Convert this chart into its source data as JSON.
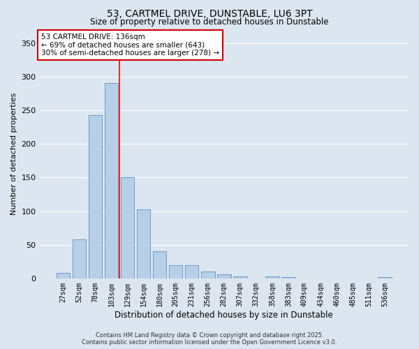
{
  "title_line1": "53, CARTMEL DRIVE, DUNSTABLE, LU6 3PT",
  "title_line2": "Size of property relative to detached houses in Dunstable",
  "xlabel": "Distribution of detached houses by size in Dunstable",
  "ylabel": "Number of detached properties",
  "categories": [
    "27sqm",
    "52sqm",
    "78sqm",
    "103sqm",
    "129sqm",
    "154sqm",
    "180sqm",
    "205sqm",
    "231sqm",
    "256sqm",
    "282sqm",
    "307sqm",
    "332sqm",
    "358sqm",
    "383sqm",
    "409sqm",
    "434sqm",
    "460sqm",
    "485sqm",
    "511sqm",
    "536sqm"
  ],
  "values": [
    8,
    58,
    243,
    291,
    150,
    103,
    40,
    20,
    20,
    10,
    6,
    3,
    0,
    3,
    2,
    0,
    0,
    0,
    0,
    0,
    2
  ],
  "bar_color": "#b8cfe8",
  "bar_edge_color": "#6699cc",
  "background_color": "#dce6f0",
  "grid_color": "#ffffff",
  "redline_x": 3.5,
  "annotation_text": "53 CARTMEL DRIVE: 136sqm\n← 69% of detached houses are smaller (643)\n30% of semi-detached houses are larger (278) →",
  "annotation_box_color": "#ffffff",
  "annotation_box_edge_color": "#cc0000",
  "footer_line1": "Contains HM Land Registry data © Crown copyright and database right 2025.",
  "footer_line2": "Contains public sector information licensed under the Open Government Licence v3.0.",
  "ylim": [
    0,
    370
  ],
  "yticks": [
    0,
    50,
    100,
    150,
    200,
    250,
    300,
    350
  ]
}
